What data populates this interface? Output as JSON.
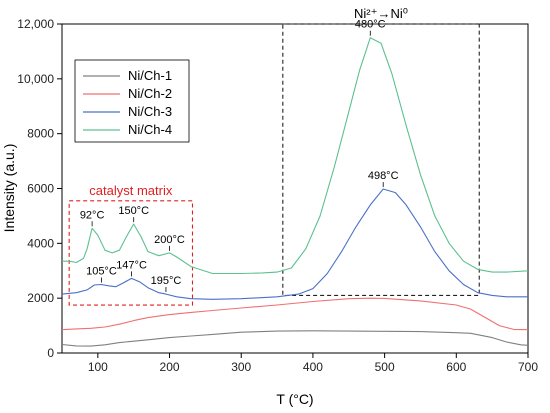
{
  "chart_data": {
    "type": "line",
    "xlabel": "T (°C)",
    "ylabel": "Intensity (a.u.)",
    "xlim": [
      50,
      700
    ],
    "ylim": [
      0,
      12000
    ],
    "x_ticks": [
      100,
      200,
      300,
      400,
      500,
      600,
      700
    ],
    "x_tick_labels": [
      "100",
      "200",
      "300",
      "400",
      "500",
      "600",
      "700"
    ],
    "y_ticks": [
      0,
      2000,
      4000,
      6000,
      8000,
      10000,
      12000
    ],
    "y_tick_labels": [
      "0",
      "2000",
      "4000",
      "6000",
      "8000",
      "10,000",
      "12,000"
    ],
    "grid": false,
    "legend_position": "top-left",
    "series": [
      {
        "name": "Ni/Ch-1",
        "color": "#808080",
        "points": [
          [
            50,
            310
          ],
          [
            70,
            260
          ],
          [
            90,
            250
          ],
          [
            110,
            300
          ],
          [
            130,
            380
          ],
          [
            150,
            430
          ],
          [
            170,
            480
          ],
          [
            200,
            560
          ],
          [
            230,
            620
          ],
          [
            260,
            680
          ],
          [
            300,
            760
          ],
          [
            350,
            800
          ],
          [
            400,
            810
          ],
          [
            450,
            800
          ],
          [
            500,
            790
          ],
          [
            550,
            780
          ],
          [
            600,
            740
          ],
          [
            620,
            720
          ],
          [
            650,
            560
          ],
          [
            670,
            400
          ],
          [
            690,
            300
          ],
          [
            700,
            280
          ]
        ]
      },
      {
        "name": "Ni/Ch-2",
        "color": "#f07070",
        "points": [
          [
            50,
            850
          ],
          [
            70,
            880
          ],
          [
            90,
            900
          ],
          [
            110,
            950
          ],
          [
            130,
            1050
          ],
          [
            150,
            1180
          ],
          [
            170,
            1290
          ],
          [
            200,
            1400
          ],
          [
            230,
            1480
          ],
          [
            260,
            1550
          ],
          [
            300,
            1640
          ],
          [
            350,
            1750
          ],
          [
            400,
            1880
          ],
          [
            450,
            1980
          ],
          [
            480,
            2000
          ],
          [
            500,
            1990
          ],
          [
            550,
            1900
          ],
          [
            600,
            1750
          ],
          [
            620,
            1600
          ],
          [
            640,
            1300
          ],
          [
            660,
            1000
          ],
          [
            680,
            860
          ],
          [
            700,
            850
          ]
        ]
      },
      {
        "name": "Ni/Ch-3",
        "color": "#4a70c8",
        "points": [
          [
            50,
            2150
          ],
          [
            70,
            2200
          ],
          [
            85,
            2300
          ],
          [
            95,
            2480
          ],
          [
            105,
            2500
          ],
          [
            115,
            2450
          ],
          [
            125,
            2420
          ],
          [
            135,
            2550
          ],
          [
            147,
            2720
          ],
          [
            158,
            2600
          ],
          [
            170,
            2380
          ],
          [
            185,
            2200
          ],
          [
            195,
            2150
          ],
          [
            210,
            2050
          ],
          [
            230,
            1980
          ],
          [
            260,
            1960
          ],
          [
            300,
            1980
          ],
          [
            350,
            2050
          ],
          [
            380,
            2150
          ],
          [
            400,
            2350
          ],
          [
            420,
            2900
          ],
          [
            440,
            3700
          ],
          [
            460,
            4600
          ],
          [
            480,
            5400
          ],
          [
            498,
            5980
          ],
          [
            515,
            5850
          ],
          [
            530,
            5400
          ],
          [
            550,
            4600
          ],
          [
            570,
            3700
          ],
          [
            590,
            3000
          ],
          [
            610,
            2500
          ],
          [
            630,
            2200
          ],
          [
            650,
            2100
          ],
          [
            670,
            2050
          ],
          [
            700,
            2050
          ]
        ]
      },
      {
        "name": "Ni/Ch-4",
        "color": "#5cc090",
        "points": [
          [
            50,
            3350
          ],
          [
            60,
            3350
          ],
          [
            70,
            3300
          ],
          [
            80,
            3450
          ],
          [
            85,
            3800
          ],
          [
            92,
            4550
          ],
          [
            100,
            4300
          ],
          [
            110,
            3750
          ],
          [
            120,
            3650
          ],
          [
            130,
            3750
          ],
          [
            140,
            4250
          ],
          [
            150,
            4700
          ],
          [
            160,
            4250
          ],
          [
            170,
            3700
          ],
          [
            185,
            3550
          ],
          [
            200,
            3650
          ],
          [
            210,
            3500
          ],
          [
            230,
            3150
          ],
          [
            260,
            2900
          ],
          [
            300,
            2900
          ],
          [
            330,
            2920
          ],
          [
            350,
            2950
          ],
          [
            370,
            3100
          ],
          [
            390,
            3800
          ],
          [
            410,
            5000
          ],
          [
            430,
            6800
          ],
          [
            450,
            8800
          ],
          [
            465,
            10300
          ],
          [
            480,
            11500
          ],
          [
            495,
            11300
          ],
          [
            510,
            10200
          ],
          [
            530,
            8300
          ],
          [
            550,
            6500
          ],
          [
            570,
            5000
          ],
          [
            590,
            4000
          ],
          [
            610,
            3350
          ],
          [
            630,
            3050
          ],
          [
            650,
            2950
          ],
          [
            670,
            2950
          ],
          [
            700,
            3000
          ]
        ]
      }
    ],
    "annotations": [
      {
        "text": "92°C",
        "x": 92,
        "y": 4550
      },
      {
        "text": "150°C",
        "x": 150,
        "y": 4700
      },
      {
        "text": "200°C",
        "x": 200,
        "y": 3650
      },
      {
        "text": "105°C",
        "x": 105,
        "y": 2500
      },
      {
        "text": "147°C",
        "x": 147,
        "y": 2720
      },
      {
        "text": "195°C",
        "x": 195,
        "y": 2150
      },
      {
        "text": "480°C",
        "x": 480,
        "y": 11500
      },
      {
        "text": "498°C",
        "x": 498,
        "y": 5980
      }
    ],
    "regions": [
      {
        "label": "catalyst matrix",
        "color": "#e02020",
        "x": [
          60,
          232
        ],
        "y": [
          1750,
          5550
        ]
      },
      {
        "label": "Ni²⁺→Ni⁰",
        "color": "#222222",
        "x": [
          358,
          632
        ],
        "y": [
          2100,
          12800
        ]
      }
    ]
  }
}
